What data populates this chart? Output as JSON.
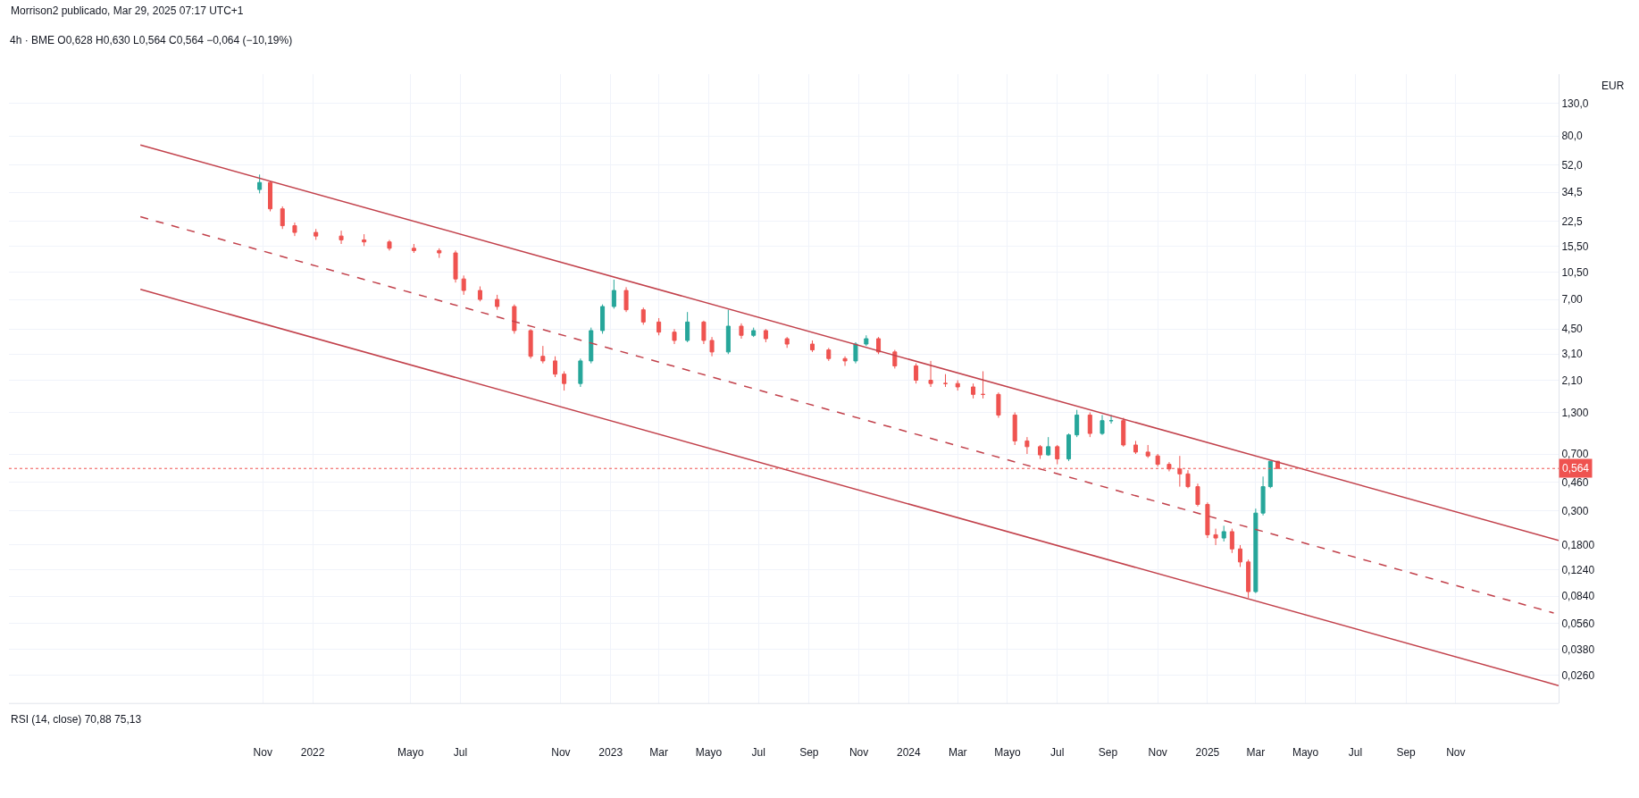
{
  "chart_data": {
    "type": "candlestick",
    "title": "4h · BME O0,628 H0,630 L0,564 C0,564 −0,064 (−10,19%)",
    "annotations": [
      "Morrison2 publicado, Mar 29, 2025 07:17 UTC+1",
      "EUR",
      "RSI (14, close) 70,88 75,13"
    ],
    "x": [
      "2021-10-28",
      "2021-11-10",
      "2021-11-25",
      "2021-12-10",
      "2022-01-05",
      "2022-02-05",
      "2022-03-05",
      "2022-04-05",
      "2022-05-05",
      "2022-06-05",
      "2022-06-25",
      "2022-07-05",
      "2022-07-25",
      "2022-08-15",
      "2022-09-05",
      "2022-09-25",
      "2022-10-10",
      "2022-10-25",
      "2022-11-05",
      "2022-11-25",
      "2022-12-08",
      "2022-12-22",
      "2023-01-05",
      "2023-01-20",
      "2023-02-10",
      "2023-03-01",
      "2023-03-20",
      "2023-04-05",
      "2023-04-25",
      "2023-05-05",
      "2023-05-25",
      "2023-06-10",
      "2023-06-25",
      "2023-07-10",
      "2023-08-05",
      "2023-09-05",
      "2023-09-25",
      "2023-10-15",
      "2023-10-28",
      "2023-11-10",
      "2023-11-25",
      "2023-12-15",
      "2024-01-10",
      "2024-01-28",
      "2024-02-15",
      "2024-03-01",
      "2024-03-20",
      "2024-04-01",
      "2024-04-20",
      "2024-05-10",
      "2024-05-25",
      "2024-06-10",
      "2024-06-20",
      "2024-07-01",
      "2024-07-15",
      "2024-07-25",
      "2024-08-10",
      "2024-08-25",
      "2024-09-05",
      "2024-09-20",
      "2024-10-05",
      "2024-10-20",
      "2024-11-01",
      "2024-11-15",
      "2024-11-28",
      "2024-12-08",
      "2024-12-20",
      "2025-01-01",
      "2025-01-11",
      "2025-01-21",
      "2025-01-31",
      "2025-02-10",
      "2025-02-20",
      "2025-03-01",
      "2025-03-10",
      "2025-03-19",
      "2025-03-28"
    ],
    "ohlc": [
      [
        36,
        45,
        34,
        40
      ],
      [
        40,
        41,
        26,
        27
      ],
      [
        27,
        28,
        20,
        21
      ],
      [
        21,
        22,
        18,
        19
      ],
      [
        19,
        20,
        17,
        18
      ],
      [
        18,
        19.5,
        16,
        17
      ],
      [
        17,
        18.5,
        15.5,
        16.5
      ],
      [
        16.5,
        17,
        14.5,
        15
      ],
      [
        15,
        16,
        14,
        14.5
      ],
      [
        14.5,
        15,
        13,
        14
      ],
      [
        14,
        14.5,
        9,
        9.5
      ],
      [
        9.5,
        10,
        7.5,
        8
      ],
      [
        8,
        8.5,
        6.8,
        7
      ],
      [
        7,
        7.5,
        6,
        6.3
      ],
      [
        6.3,
        6.5,
        4.2,
        4.4
      ],
      [
        4.4,
        4.5,
        2.9,
        3
      ],
      [
        3,
        3.5,
        2.7,
        2.8
      ],
      [
        2.8,
        3,
        2.2,
        2.3
      ],
      [
        2.3,
        2.4,
        1.8,
        2
      ],
      [
        2,
        2.9,
        1.9,
        2.8
      ],
      [
        2.8,
        4.6,
        2.7,
        4.4
      ],
      [
        4.4,
        6.5,
        4.2,
        6.3
      ],
      [
        6.3,
        9.4,
        6.1,
        8
      ],
      [
        8,
        8.4,
        5.8,
        6
      ],
      [
        6,
        6.2,
        4.8,
        5
      ],
      [
        5,
        5.3,
        4.1,
        4.3
      ],
      [
        4.3,
        4.5,
        3.6,
        3.8
      ],
      [
        3.8,
        5.8,
        3.7,
        5
      ],
      [
        5,
        5.1,
        3.6,
        3.8
      ],
      [
        3.8,
        4,
        3,
        3.2
      ],
      [
        3.2,
        6,
        3.1,
        4.7
      ],
      [
        4.7,
        4.9,
        3.9,
        4.1
      ],
      [
        4.1,
        4.6,
        4,
        4.4
      ],
      [
        4.4,
        4.5,
        3.7,
        3.9
      ],
      [
        3.9,
        4,
        3.4,
        3.6
      ],
      [
        3.6,
        3.8,
        3.2,
        3.3
      ],
      [
        3.3,
        3.4,
        2.8,
        2.9
      ],
      [
        2.9,
        3,
        2.6,
        2.8
      ],
      [
        2.8,
        3.7,
        2.7,
        3.6
      ],
      [
        3.6,
        4.1,
        3.5,
        3.9
      ],
      [
        3.9,
        4,
        3.1,
        3.2
      ],
      [
        3.2,
        3.3,
        2.5,
        2.6
      ],
      [
        2.6,
        2.7,
        2,
        2.1
      ],
      [
        2.1,
        2.8,
        1.9,
        2
      ],
      [
        2,
        2.3,
        1.9,
        2
      ],
      [
        2,
        2.1,
        1.8,
        1.9
      ],
      [
        1.9,
        2,
        1.6,
        1.7
      ],
      [
        1.7,
        2.4,
        1.6,
        1.7
      ],
      [
        1.7,
        1.75,
        1.2,
        1.25
      ],
      [
        1.25,
        1.3,
        0.8,
        0.85
      ],
      [
        0.85,
        0.9,
        0.7,
        0.78
      ],
      [
        0.78,
        0.8,
        0.65,
        0.69
      ],
      [
        0.69,
        0.9,
        0.68,
        0.78
      ],
      [
        0.78,
        0.8,
        0.6,
        0.65
      ],
      [
        0.65,
        0.95,
        0.63,
        0.93
      ],
      [
        0.93,
        1.35,
        0.9,
        1.25
      ],
      [
        1.25,
        1.3,
        0.9,
        0.95
      ],
      [
        0.95,
        1.25,
        0.93,
        1.15
      ],
      [
        1.15,
        1.25,
        1.1,
        1.15
      ],
      [
        1.15,
        1.2,
        0.78,
        0.8
      ],
      [
        0.8,
        0.85,
        0.7,
        0.72
      ],
      [
        0.72,
        0.8,
        0.66,
        0.68
      ],
      [
        0.68,
        0.7,
        0.58,
        0.6
      ],
      [
        0.6,
        0.62,
        0.54,
        0.56
      ],
      [
        0.56,
        0.68,
        0.43,
        0.52
      ],
      [
        0.52,
        0.55,
        0.42,
        0.43
      ],
      [
        0.43,
        0.45,
        0.32,
        0.33
      ],
      [
        0.33,
        0.34,
        0.2,
        0.21
      ],
      [
        0.21,
        0.23,
        0.18,
        0.2
      ],
      [
        0.2,
        0.24,
        0.19,
        0.22
      ],
      [
        0.22,
        0.23,
        0.16,
        0.17
      ],
      [
        0.17,
        0.18,
        0.13,
        0.14
      ],
      [
        0.14,
        0.145,
        0.082,
        0.09
      ],
      [
        0.09,
        0.31,
        0.088,
        0.29
      ],
      [
        0.29,
        0.5,
        0.28,
        0.43
      ],
      [
        0.43,
        0.63,
        0.42,
        0.628
      ],
      [
        0.628,
        0.63,
        0.564,
        0.564
      ]
    ],
    "series": [
      {
        "type": "line",
        "color": "#c2414b",
        "line_style": "solid",
        "x": [
          "2021-06-04",
          "2026-03-07"
        ],
        "values": [
          69.9,
          0.193
        ]
      },
      {
        "type": "line",
        "color": "#c2414b",
        "line_style": "dashed",
        "x": [
          "2021-06-04",
          "2026-03-01"
        ],
        "values": [
          24.0,
          0.0655
        ]
      },
      {
        "type": "line",
        "color": "#c2414b",
        "line_style": "solid",
        "x": [
          "2021-06-04",
          "2026-03-07"
        ],
        "values": [
          8.13,
          0.0222
        ]
      }
    ],
    "ref_lines": [
      {
        "axis": "y",
        "value": 0.564,
        "label": "0,564",
        "color": "#ef5350",
        "line_style": "dotted"
      }
    ],
    "log": "y",
    "ylim": [
      0.017,
      200
    ],
    "yticks": [
      {
        "value": 130,
        "label": "130,0"
      },
      {
        "value": 80,
        "label": "80,0"
      },
      {
        "value": 52,
        "label": "52,0"
      },
      {
        "value": 34.5,
        "label": "34,5"
      },
      {
        "value": 22.5,
        "label": "22,5"
      },
      {
        "value": 15.5,
        "label": "15,50"
      },
      {
        "value": 10.5,
        "label": "10,50"
      },
      {
        "value": 7,
        "label": "7,00"
      },
      {
        "value": 4.5,
        "label": "4,50"
      },
      {
        "value": 3.1,
        "label": "3,10"
      },
      {
        "value": 2.1,
        "label": "2,10"
      },
      {
        "value": 1.3,
        "label": "1,300"
      },
      {
        "value": 0.7,
        "label": "0,700"
      },
      {
        "value": 0.46,
        "label": "0,460"
      },
      {
        "value": 0.3,
        "label": "0,300"
      },
      {
        "value": 0.18,
        "label": "0,1800"
      },
      {
        "value": 0.124,
        "label": "0,1240"
      },
      {
        "value": 0.084,
        "label": "0,0840"
      },
      {
        "value": 0.056,
        "label": "0,0560"
      },
      {
        "value": 0.038,
        "label": "0,0380"
      },
      {
        "value": 0.026,
        "label": "0,0260"
      }
    ],
    "xlim": [
      "2020-12-25",
      "2026-03-07"
    ],
    "xticks": [
      {
        "value": "2021-11-01",
        "label": "Nov"
      },
      {
        "value": "2022-01-01",
        "label": "2022"
      },
      {
        "value": "2022-05-01",
        "label": "Mayo"
      },
      {
        "value": "2022-07-01",
        "label": "Jul"
      },
      {
        "value": "2022-11-01",
        "label": "Nov"
      },
      {
        "value": "2023-01-01",
        "label": "2023"
      },
      {
        "value": "2023-03-01",
        "label": "Mar"
      },
      {
        "value": "2023-05-01",
        "label": "Mayo"
      },
      {
        "value": "2023-07-01",
        "label": "Jul"
      },
      {
        "value": "2023-09-01",
        "label": "Sep"
      },
      {
        "value": "2023-11-01",
        "label": "Nov"
      },
      {
        "value": "2024-01-01",
        "label": "2024"
      },
      {
        "value": "2024-03-01",
        "label": "Mar"
      },
      {
        "value": "2024-05-01",
        "label": "Mayo"
      },
      {
        "value": "2024-07-01",
        "label": "Jul"
      },
      {
        "value": "2024-09-01",
        "label": "Sep"
      },
      {
        "value": "2024-11-01",
        "label": "Nov"
      },
      {
        "value": "2025-01-01",
        "label": "2025"
      },
      {
        "value": "2025-03-01",
        "label": "Mar"
      },
      {
        "value": "2025-05-01",
        "label": "Mayo"
      },
      {
        "value": "2025-07-01",
        "label": "Jul"
      },
      {
        "value": "2025-09-01",
        "label": "Sep"
      },
      {
        "value": "2025-11-01",
        "label": "Nov"
      }
    ],
    "grid": true
  }
}
